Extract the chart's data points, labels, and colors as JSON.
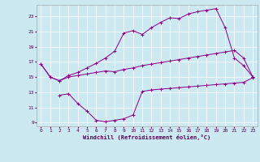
{
  "xlabel": "Windchill (Refroidissement éolien,°C)",
  "background_color": "#cce8f0",
  "line_color": "#880088",
  "grid_color": "#ffffff",
  "xlim": [
    -0.5,
    23.5
  ],
  "ylim": [
    8.5,
    24.5
  ],
  "xticks": [
    0,
    1,
    2,
    3,
    4,
    5,
    6,
    7,
    8,
    9,
    10,
    11,
    12,
    13,
    14,
    15,
    16,
    17,
    18,
    19,
    20,
    21,
    22,
    23
  ],
  "yticks": [
    9,
    11,
    13,
    15,
    17,
    19,
    21,
    23
  ],
  "line1_x": [
    0,
    1,
    2,
    3,
    4,
    5,
    6,
    7,
    8,
    9,
    10,
    11,
    12,
    13,
    14,
    15,
    16,
    17,
    18,
    19,
    20,
    21,
    22,
    23
  ],
  "line1_y": [
    16.7,
    15.0,
    14.5,
    15.2,
    15.6,
    16.2,
    16.8,
    17.5,
    18.4,
    20.8,
    21.1,
    20.6,
    21.5,
    22.2,
    22.8,
    22.7,
    23.3,
    23.6,
    23.8,
    24.0,
    21.5,
    17.5,
    16.5,
    15.0
  ],
  "line2_x": [
    0,
    1,
    2,
    3,
    4,
    5,
    6,
    7,
    8,
    9,
    10,
    11,
    12,
    13,
    14,
    15,
    16,
    17,
    18,
    19,
    20,
    21,
    22,
    23
  ],
  "line2_y": [
    16.7,
    15.0,
    14.5,
    15.0,
    15.2,
    15.4,
    15.6,
    15.8,
    15.7,
    16.0,
    16.2,
    16.5,
    16.7,
    16.9,
    17.1,
    17.3,
    17.5,
    17.7,
    17.9,
    18.1,
    18.3,
    18.5,
    17.5,
    15.0
  ],
  "line3_x": [
    2,
    3,
    4,
    5,
    6,
    7,
    8,
    9,
    10,
    11,
    12,
    13,
    14,
    15,
    16,
    17,
    18,
    19,
    20,
    21,
    22,
    23
  ],
  "line3_y": [
    12.6,
    12.8,
    11.5,
    10.5,
    9.3,
    9.1,
    9.3,
    9.5,
    10.0,
    13.1,
    13.3,
    13.4,
    13.5,
    13.6,
    13.7,
    13.8,
    13.9,
    14.0,
    14.1,
    14.2,
    14.3,
    14.9
  ]
}
